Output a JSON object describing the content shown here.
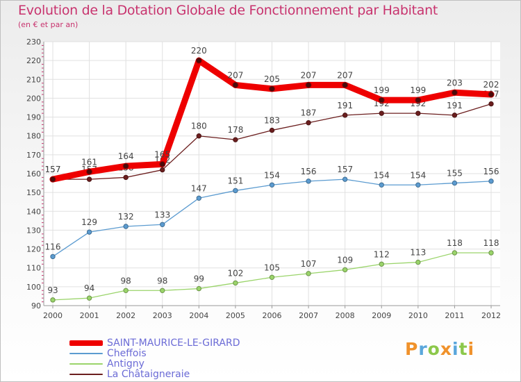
{
  "chart_data": {
    "type": "line",
    "title": "Evolution de la Dotation Globale de Fonctionnement par Habitant",
    "subtitle": "(en € et par an)",
    "categories": [
      "2000",
      "2001",
      "2002",
      "2003",
      "2004",
      "2005",
      "2006",
      "2007",
      "2008",
      "2009",
      "2010",
      "2011",
      "2012"
    ],
    "ylim": [
      90,
      230
    ],
    "yticks": [
      90,
      100,
      110,
      120,
      130,
      140,
      150,
      160,
      170,
      180,
      190,
      200,
      210,
      220,
      230
    ],
    "grid": true,
    "legend_position": "bottom-left",
    "series": [
      {
        "name": "La Châtaigneraie",
        "color": "#6b1e1e",
        "emphasis": false,
        "values": [
          157,
          157,
          158,
          162,
          180,
          178,
          183,
          187,
          191,
          192,
          192,
          191,
          197
        ]
      },
      {
        "name": "Antigny",
        "color": "#9ad46a",
        "emphasis": false,
        "values": [
          93,
          94,
          98,
          98,
          99,
          102,
          105,
          107,
          109,
          112,
          113,
          118,
          118
        ]
      },
      {
        "name": "Cheffois",
        "color": "#5b9bd0",
        "emphasis": false,
        "values": [
          116,
          129,
          132,
          133,
          147,
          151,
          154,
          156,
          157,
          154,
          154,
          155,
          156
        ]
      },
      {
        "name": "SAINT-MAURICE-LE-GIRARD",
        "color": "#ee0000",
        "emphasis": true,
        "values": [
          157,
          161,
          164,
          165,
          220,
          207,
          205,
          207,
          207,
          199,
          199,
          203,
          202
        ]
      }
    ],
    "legend_order": [
      "SAINT-MAURICE-LE-GIRARD",
      "Cheffois",
      "Antigny",
      "La Châtaigneraie"
    ]
  },
  "logo": {
    "text": "Proxiti",
    "colors": [
      "#f0922b",
      "#5aa7dc",
      "#8cc84b",
      "#f0922b",
      "#5aa7dc",
      "#8cc84b",
      "#f0922b"
    ]
  }
}
